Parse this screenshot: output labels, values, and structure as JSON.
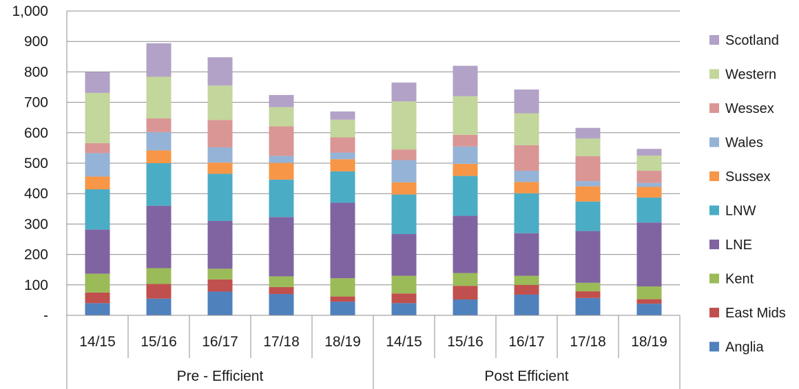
{
  "chart_data": {
    "type": "bar",
    "stacked": true,
    "title": "",
    "xlabel": "",
    "ylabel": "",
    "ylim": [
      0,
      1000
    ],
    "yticks": [
      0,
      100,
      200,
      300,
      400,
      500,
      600,
      700,
      800,
      900,
      1000
    ],
    "ytick_labels": [
      "-",
      "100",
      "200",
      "300",
      "400",
      "500",
      "600",
      "700",
      "800",
      "900",
      "1,000"
    ],
    "grid": true,
    "legend_position": "right",
    "categories": [
      "14/15",
      "15/16",
      "16/17",
      "17/18",
      "18/19",
      "14/15",
      "15/16",
      "16/17",
      "17/18",
      "18/19"
    ],
    "groups": [
      {
        "label": "Pre - Efficient",
        "categories": [
          "14/15",
          "15/16",
          "16/17",
          "17/18",
          "18/19"
        ]
      },
      {
        "label": "Post Efficient",
        "categories": [
          "14/15",
          "15/16",
          "16/17",
          "17/18",
          "18/19"
        ]
      }
    ],
    "series": [
      {
        "name": "Anglia",
        "color": "#4F81BD",
        "values": [
          40,
          55,
          78,
          70,
          45,
          40,
          52,
          68,
          57,
          38
        ]
      },
      {
        "name": "East Mids",
        "color": "#C0504D",
        "values": [
          35,
          48,
          40,
          23,
          17,
          32,
          45,
          32,
          22,
          15
        ]
      },
      {
        "name": "Kent",
        "color": "#9BBB59",
        "values": [
          62,
          52,
          35,
          35,
          60,
          58,
          42,
          30,
          28,
          42
        ]
      },
      {
        "name": "LNE",
        "color": "#8064A2",
        "values": [
          145,
          205,
          157,
          195,
          248,
          137,
          188,
          140,
          170,
          210
        ]
      },
      {
        "name": "LNW",
        "color": "#4BACC6",
        "values": [
          132,
          140,
          155,
          123,
          103,
          130,
          131,
          131,
          97,
          82
        ]
      },
      {
        "name": "Sussex",
        "color": "#F79646",
        "values": [
          42,
          42,
          37,
          55,
          40,
          40,
          40,
          37,
          50,
          35
        ]
      },
      {
        "name": "Wales",
        "color": "#95B3D7",
        "values": [
          77,
          60,
          50,
          23,
          22,
          73,
          57,
          37,
          17,
          13
        ]
      },
      {
        "name": "Wessex",
        "color": "#D99694",
        "values": [
          33,
          45,
          90,
          97,
          50,
          35,
          38,
          84,
          82,
          40
        ]
      },
      {
        "name": "Western",
        "color": "#C3D69B",
        "values": [
          165,
          137,
          113,
          63,
          58,
          158,
          127,
          105,
          58,
          50
        ]
      },
      {
        "name": "Scotland",
        "color": "#B2A2C7",
        "values": [
          68,
          110,
          93,
          40,
          27,
          62,
          100,
          78,
          35,
          22
        ]
      }
    ]
  }
}
